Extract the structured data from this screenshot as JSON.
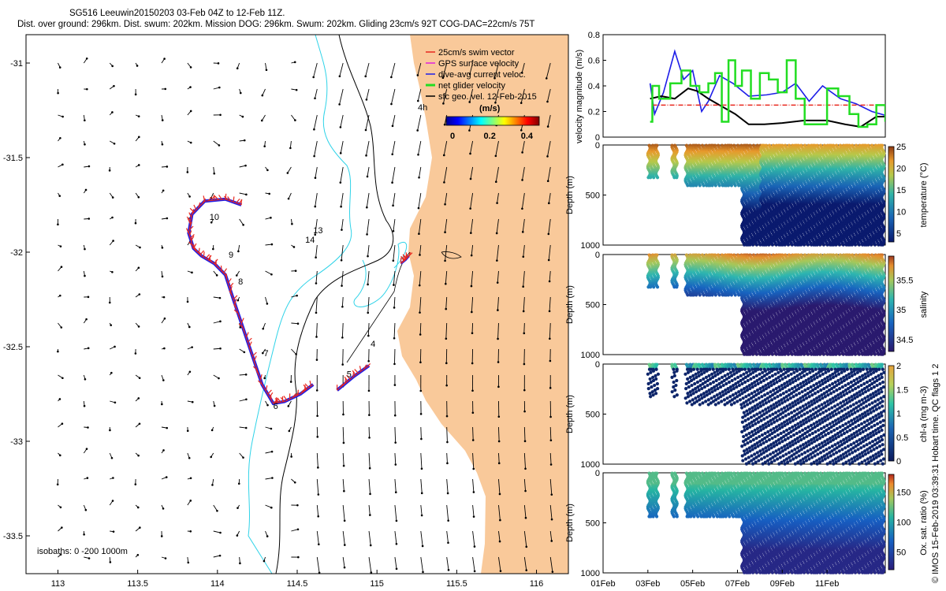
{
  "header": {
    "title_line1": "SG516 Leeuwin20150203 03-Feb 04Z to 12-Feb 11Z.",
    "title_line2": "Dist. over ground: 296km. Dist. swum: 202km. Mission DOG: 296km. Swum: 202km. Gliding 23cm/s 92T COG-DAC=22cm/s 75T"
  },
  "colors": {
    "land": "#f9c99a",
    "isobath_200": "#000000",
    "isobath_1000": "#2fd3e8",
    "swim_vector": "#e8281e",
    "gps_velocity": "#e020e0",
    "dive_avg": "#1e1ee8",
    "net_glider": "#22dd22",
    "sfc_geo": "#000000"
  },
  "map": {
    "legend": {
      "swim_vector": "25cm/s swim vector",
      "gps_velocity": "GPS surface velocity",
      "dive_avg": "dive-avg current veloc.",
      "net_glider": "net glider velocity",
      "sfc_geo": "sfc geo. vel. 12-Feb-2015"
    },
    "colorbar": {
      "title": "(m/s)",
      "ticks": [
        "0",
        "0.2",
        "0.4"
      ],
      "range": [
        0,
        0.5
      ]
    },
    "isobaths_label": "isobaths: 0  -200  1000m",
    "track_labels": [
      "13",
      "14",
      "10",
      "9",
      "8",
      "7",
      "6",
      "5",
      "4",
      "4h"
    ]
  },
  "side_note": "© IMOS 15-Feb-2019 03:39:31 Hobart time. QC flags 1  2",
  "chart_data": [
    {
      "type": "scatter",
      "name": "glider-track-map",
      "title": "SG516 Leeuwin20150203 03-Feb 04Z to 12-Feb 11Z.",
      "xlabel": "",
      "ylabel": "",
      "xlim": [
        112.8,
        116.2
      ],
      "ylim": [
        -33.7,
        -30.85
      ],
      "x_ticks": [
        "113",
        "113.5",
        "114",
        "114.5",
        "115",
        "115.5",
        "116"
      ],
      "y_ticks": [
        "-31",
        "-31.5",
        "-32",
        "-32.5",
        "-33",
        "-33.5"
      ],
      "track": {
        "lon": [
          114.15,
          114.05,
          113.92,
          113.84,
          113.82,
          113.85,
          113.9,
          113.98,
          114.05,
          114.1,
          114.16,
          114.22,
          114.28,
          114.35,
          114.42,
          114.52,
          114.6
        ],
        "lat": [
          -31.75,
          -31.72,
          -31.73,
          -31.8,
          -31.9,
          -31.98,
          -32.02,
          -32.06,
          -32.12,
          -32.25,
          -32.4,
          -32.55,
          -32.7,
          -32.8,
          -32.79,
          -32.75,
          -32.7
        ]
      },
      "track_2": {
        "lon": [
          114.75,
          114.85,
          114.95
        ],
        "lat": [
          -32.73,
          -32.66,
          -32.6
        ]
      },
      "track_3": {
        "lon": [
          115.15,
          115.18,
          115.2
        ],
        "lat": [
          -32.06,
          -32.04,
          -32.02
        ]
      }
    },
    {
      "type": "line",
      "name": "velocity-magnitude",
      "title": "",
      "xlabel": "",
      "ylabel": "velocity magnitude (m/s)",
      "xlim": [
        1.0,
        13.6
      ],
      "ylim": [
        0,
        0.8
      ],
      "y_ticks": [
        "0",
        "0.2",
        "0.4",
        "0.6",
        "0.8"
      ],
      "series": [
        {
          "name": "blue",
          "color": "#1e1ee8",
          "x": [
            3.1,
            3.3,
            3.7,
            4.2,
            4.6,
            5.0,
            5.4,
            5.7,
            6.2,
            6.8,
            7.5,
            8.3,
            9.0,
            9.6,
            10.2,
            10.8,
            11.6,
            12.3,
            13.0,
            13.6
          ],
          "y": [
            0.42,
            0.18,
            0.35,
            0.67,
            0.45,
            0.52,
            0.2,
            0.28,
            0.48,
            0.42,
            0.32,
            0.33,
            0.35,
            0.42,
            0.28,
            0.4,
            0.3,
            0.26,
            0.2,
            0.17
          ]
        },
        {
          "name": "black",
          "color": "#000000",
          "x": [
            3.1,
            3.6,
            4.2,
            4.8,
            5.2,
            5.7,
            6.3,
            6.9,
            7.5,
            8.2,
            9.0,
            10.0,
            11.0,
            11.8,
            12.5,
            13.2,
            13.6
          ],
          "y": [
            0.3,
            0.32,
            0.3,
            0.38,
            0.36,
            0.3,
            0.24,
            0.18,
            0.1,
            0.1,
            0.11,
            0.13,
            0.13,
            0.1,
            0.08,
            0.16,
            0.16
          ]
        },
        {
          "name": "red",
          "color": "#e8281e",
          "x": [
            3.2,
            13.6
          ],
          "y": [
            0.25,
            0.25
          ]
        },
        {
          "name": "green",
          "color": "#22dd22",
          "x": [
            3.1,
            3.2,
            3.5,
            4.0,
            4.5,
            4.9,
            5.3,
            5.7,
            6.0,
            6.3,
            6.6,
            6.9,
            7.2,
            7.6,
            8.0,
            8.4,
            8.8,
            9.2,
            9.6,
            10.0,
            10.5,
            11.0,
            11.5,
            12.0,
            12.4,
            12.8,
            13.2,
            13.6
          ],
          "y": [
            0.12,
            0.4,
            0.3,
            0.42,
            0.52,
            0.4,
            0.35,
            0.42,
            0.5,
            0.12,
            0.6,
            0.4,
            0.52,
            0.3,
            0.5,
            0.45,
            0.35,
            0.6,
            0.3,
            0.1,
            0.1,
            0.38,
            0.32,
            0.18,
            0.08,
            0.1,
            0.25,
            0.12
          ]
        }
      ]
    },
    {
      "type": "heatmap",
      "name": "temperature-section",
      "xlabel": "",
      "ylabel": "Depth (m)",
      "colorbar_label": "temperature (°C)",
      "ylim": [
        0,
        1000
      ],
      "y_ticks": [
        "0",
        "500",
        "1000"
      ],
      "cbar_ticks": [
        "5",
        "10",
        "15",
        "20",
        "25"
      ],
      "cbar_range": [
        3,
        25
      ]
    },
    {
      "type": "heatmap",
      "name": "salinity-section",
      "xlabel": "",
      "ylabel": "Depth (m)",
      "colorbar_label": "salinity",
      "ylim": [
        0,
        1000
      ],
      "y_ticks": [
        "0",
        "500",
        "1000"
      ],
      "cbar_ticks": [
        "34.5",
        "35",
        "35.5"
      ],
      "cbar_range": [
        34.3,
        35.9
      ]
    },
    {
      "type": "heatmap",
      "name": "chla-section",
      "xlabel": "",
      "ylabel": "Depth (m)",
      "colorbar_label": "chl-a (mg m-3)",
      "ylim": [
        0,
        1000
      ],
      "y_ticks": [
        "0",
        "500",
        "1000"
      ],
      "cbar_ticks": [
        "0",
        "0.5",
        "1",
        "1.5",
        "2"
      ],
      "cbar_range": [
        0,
        2
      ]
    },
    {
      "type": "heatmap",
      "name": "oxygen-section",
      "xlabel": "",
      "ylabel": "Depth (m)",
      "colorbar_label": "Ox. sat. ratio (%)",
      "ylim": [
        0,
        1000
      ],
      "y_ticks": [
        "0",
        "500",
        "1000"
      ],
      "cbar_ticks": [
        "50",
        "100",
        "150"
      ],
      "cbar_range": [
        20,
        180
      ],
      "x_ticks": [
        "01Feb",
        "03Feb",
        "05Feb",
        "07Feb",
        "09Feb",
        "11Feb"
      ]
    }
  ]
}
